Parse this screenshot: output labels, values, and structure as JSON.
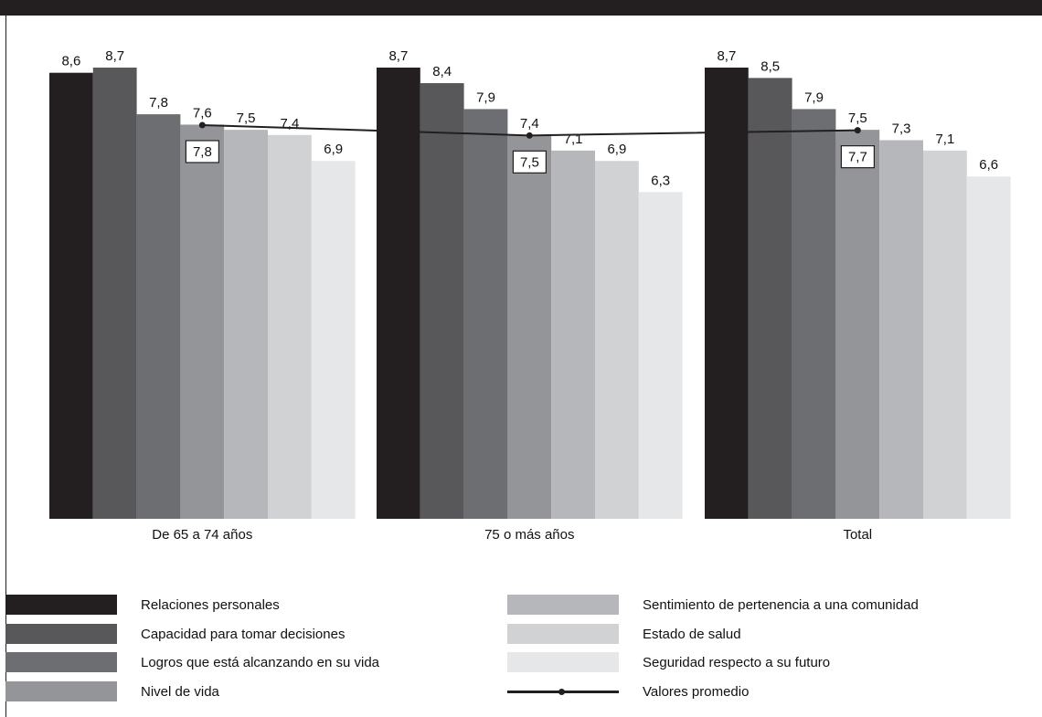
{
  "chart_data": {
    "type": "bar",
    "categories": [
      "De 65 a 74 años",
      "75 o más años",
      "Total"
    ],
    "series": [
      {
        "name": "Relaciones personales",
        "color": "#231f20",
        "values": [
          8.6,
          8.7,
          8.7
        ],
        "labels": [
          "8,6",
          "8,7",
          "8,7"
        ]
      },
      {
        "name": "Capacidad para tomar decisiones",
        "color": "#58585a",
        "values": [
          8.7,
          8.4,
          8.5
        ],
        "labels": [
          "8,7",
          "8,4",
          "8,5"
        ]
      },
      {
        "name": "Logros que está alcanzando en su vida",
        "color": "#6d6e71",
        "values": [
          7.8,
          7.9,
          7.9
        ],
        "labels": [
          "7,8",
          "7,9",
          "7,9"
        ]
      },
      {
        "name": "Nivel de vida",
        "color": "#939598",
        "values": [
          7.6,
          7.4,
          7.5
        ],
        "labels": [
          "7,6",
          "7,4",
          "7,5"
        ]
      },
      {
        "name": "Sentimiento de pertenencia a una comunidad",
        "color": "#b6b7ba",
        "values": [
          7.5,
          7.1,
          7.3
        ],
        "labels": [
          "7,5",
          "7,1",
          "7,3"
        ]
      },
      {
        "name": "Estado de salud",
        "color": "#d1d2d4",
        "values": [
          7.4,
          6.9,
          7.1
        ],
        "labels": [
          "7,4",
          "6,9",
          "7,1"
        ]
      },
      {
        "name": "Seguridad respecto a su futuro",
        "color": "#e6e7e8",
        "values": [
          6.9,
          6.3,
          6.6
        ],
        "labels": [
          "6,9",
          "6,3",
          "6,6"
        ]
      }
    ],
    "average_line": {
      "name": "Valores promedio",
      "color": "#231f20",
      "values": [
        7.8,
        7.5,
        7.7
      ],
      "labels": [
        "7,8",
        "7,5",
        "7,7"
      ]
    },
    "ylim": [
      0,
      8.7
    ],
    "grid": false,
    "legend_position": "bottom"
  }
}
